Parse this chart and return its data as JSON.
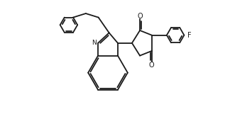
{
  "background": "#ffffff",
  "line_color": "#1a1a1a",
  "line_width": 1.3,
  "figsize": [
    3.24,
    1.85
  ],
  "dpi": 100,
  "xlim": [
    -0.5,
    3.8
  ],
  "ylim": [
    -0.5,
    2.8
  ]
}
